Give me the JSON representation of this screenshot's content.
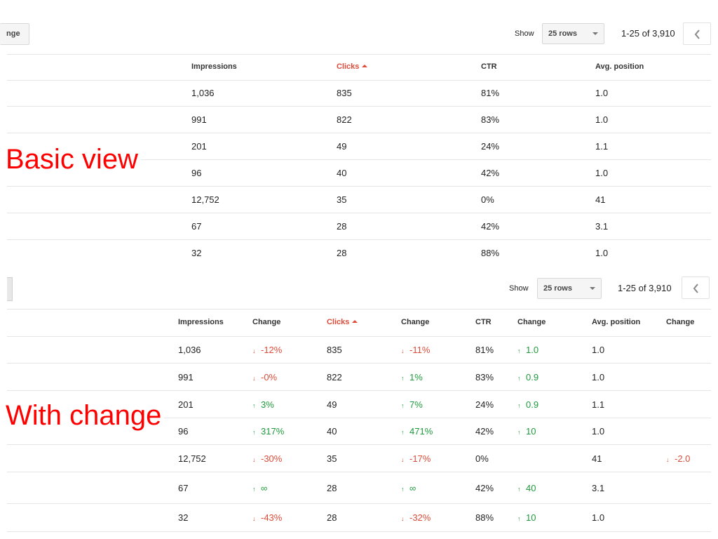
{
  "basic": {
    "change_button_fragment": "nge",
    "show_label": "Show",
    "rows_select": "25 rows",
    "range": "1-25 of 3,910",
    "headers": [
      "Impressions",
      "Clicks",
      "CTR",
      "Avg. position"
    ],
    "sorted_column": "Clicks",
    "rows": [
      {
        "impressions": "1,036",
        "clicks": "835",
        "ctr": "81%",
        "position": "1.0"
      },
      {
        "impressions": "991",
        "clicks": "822",
        "ctr": "83%",
        "position": "1.0"
      },
      {
        "impressions": "201",
        "clicks": "49",
        "ctr": "24%",
        "position": "1.1"
      },
      {
        "impressions": "96",
        "clicks": "40",
        "ctr": "42%",
        "position": "1.0"
      },
      {
        "impressions": "12,752",
        "clicks": "35",
        "ctr": "0%",
        "position": "41"
      },
      {
        "impressions": "67",
        "clicks": "28",
        "ctr": "42%",
        "position": "3.1"
      },
      {
        "impressions": "32",
        "clicks": "28",
        "ctr": "88%",
        "position": "1.0"
      }
    ],
    "annotation": "Basic view"
  },
  "change": {
    "show_label": "Show",
    "rows_select": "25 rows",
    "range": "1-25 of 3,910",
    "headers": [
      "Impressions",
      "Change",
      "Clicks",
      "Change",
      "CTR",
      "Change",
      "Avg. position",
      "Change"
    ],
    "sorted_column": "Clicks",
    "rows": [
      {
        "impressions": "1,036",
        "imp_change": {
          "dir": "down",
          "text": "-12%"
        },
        "clicks": "835",
        "clicks_change": {
          "dir": "down",
          "text": "-11%"
        },
        "ctr": "81%",
        "ctr_change": {
          "dir": "up",
          "text": "1.0"
        },
        "position": "1.0",
        "pos_change": null
      },
      {
        "impressions": "991",
        "imp_change": {
          "dir": "down",
          "text": "-0%"
        },
        "clicks": "822",
        "clicks_change": {
          "dir": "up",
          "text": "1%"
        },
        "ctr": "83%",
        "ctr_change": {
          "dir": "up",
          "text": "0.9"
        },
        "position": "1.0",
        "pos_change": null
      },
      {
        "impressions": "201",
        "imp_change": {
          "dir": "up",
          "text": "3%"
        },
        "clicks": "49",
        "clicks_change": {
          "dir": "up",
          "text": "7%"
        },
        "ctr": "24%",
        "ctr_change": {
          "dir": "up",
          "text": "0.9"
        },
        "position": "1.1",
        "pos_change": null
      },
      {
        "impressions": "96",
        "imp_change": {
          "dir": "up",
          "text": "317%"
        },
        "clicks": "40",
        "clicks_change": {
          "dir": "up",
          "text": "471%"
        },
        "ctr": "42%",
        "ctr_change": {
          "dir": "up",
          "text": "10"
        },
        "position": "1.0",
        "pos_change": null
      },
      {
        "impressions": "12,752",
        "imp_change": {
          "dir": "down",
          "text": "-30%"
        },
        "clicks": "35",
        "clicks_change": {
          "dir": "down",
          "text": "-17%"
        },
        "ctr": "0%",
        "ctr_change": null,
        "position": "41",
        "pos_change": {
          "dir": "down",
          "text": "-2.0"
        }
      },
      {
        "impressions": "67",
        "imp_change": {
          "dir": "up",
          "text": "∞"
        },
        "clicks": "28",
        "clicks_change": {
          "dir": "up",
          "text": "∞"
        },
        "ctr": "42%",
        "ctr_change": {
          "dir": "up",
          "text": "40"
        },
        "position": "3.1",
        "pos_change": null
      },
      {
        "impressions": "32",
        "imp_change": {
          "dir": "down",
          "text": "-43%"
        },
        "clicks": "28",
        "clicks_change": {
          "dir": "down",
          "text": "-32%"
        },
        "ctr": "88%",
        "ctr_change": {
          "dir": "up",
          "text": "10"
        },
        "position": "1.0",
        "pos_change": null
      }
    ],
    "annotation": "With change"
  },
  "colors": {
    "up": "#1e9a3c",
    "down": "#dd4b39",
    "sorted_header": "#dd4b39",
    "annotation": "#ff0000"
  }
}
